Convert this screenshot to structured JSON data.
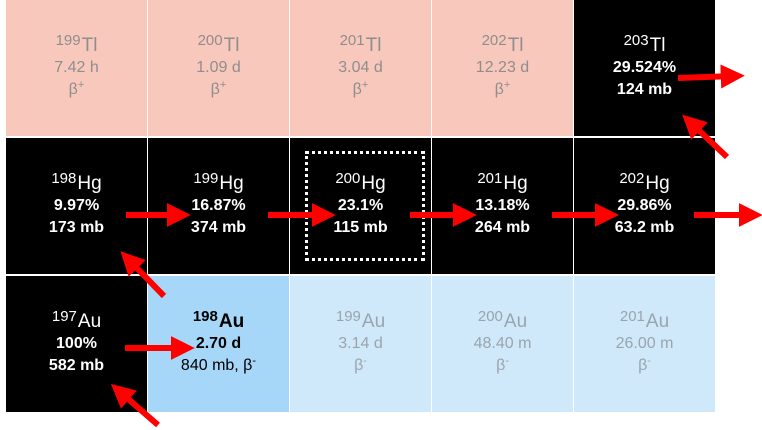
{
  "nuclides": [
    {
      "sym": "Tl",
      "mass": "199",
      "line2": "7.42 h",
      "line3": "β",
      "line3_sup": "+",
      "kind": "unstable-tl"
    },
    {
      "sym": "Tl",
      "mass": "200",
      "line2": "1.09 d",
      "line3": "β",
      "line3_sup": "+",
      "kind": "unstable-tl"
    },
    {
      "sym": "Tl",
      "mass": "201",
      "line2": "3.04 d",
      "line3": "β",
      "line3_sup": "+",
      "kind": "unstable-tl"
    },
    {
      "sym": "Tl",
      "mass": "202",
      "line2": "12.23 d",
      "line3": "β",
      "line3_sup": "+",
      "kind": "unstable-tl"
    },
    {
      "sym": "Tl",
      "mass": "203",
      "line2": "29.524%",
      "line3": "124 mb",
      "line3_sup": "",
      "kind": "stable"
    },
    {
      "sym": "Hg",
      "mass": "198",
      "line2": "9.97%",
      "line3": "173 mb",
      "line3_sup": "",
      "kind": "stable"
    },
    {
      "sym": "Hg",
      "mass": "199",
      "line2": "16.87%",
      "line3": "374 mb",
      "line3_sup": "",
      "kind": "stable"
    },
    {
      "sym": "Hg",
      "mass": "200",
      "line2": "23.1%",
      "line3": "115 mb",
      "line3_sup": "",
      "kind": "stable"
    },
    {
      "sym": "Hg",
      "mass": "201",
      "line2": "13.18%",
      "line3": "264 mb",
      "line3_sup": "",
      "kind": "stable"
    },
    {
      "sym": "Hg",
      "mass": "202",
      "line2": "29.86%",
      "line3": "63.2 mb",
      "line3_sup": "",
      "kind": "stable"
    },
    {
      "sym": "Au",
      "mass": "197",
      "line2": "100%",
      "line3": "582 mb",
      "line3_sup": "",
      "kind": "stable"
    },
    {
      "sym": "Au",
      "mass": "198",
      "line2": "2.70 d",
      "line3": "840 mb, β",
      "line3_sup": "-",
      "kind": "target-au"
    },
    {
      "sym": "Au",
      "mass": "199",
      "line2": "3.14 d",
      "line3": "β",
      "line3_sup": "-",
      "kind": "unstable-au"
    },
    {
      "sym": "Au",
      "mass": "200",
      "line2": "48.40 m",
      "line3": "β",
      "line3_sup": "-",
      "kind": "unstable-au"
    },
    {
      "sym": "Au",
      "mass": "201",
      "line2": "26.00 m",
      "line3": "β",
      "line3_sup": "-",
      "kind": "unstable-au"
    }
  ],
  "colors": {
    "arrow": "#ff0000",
    "tl_unstable": "#f9c8bc",
    "stable": "#000000",
    "au_unstable": "#cfe9fb",
    "au_target": "#a6d6f8"
  }
}
